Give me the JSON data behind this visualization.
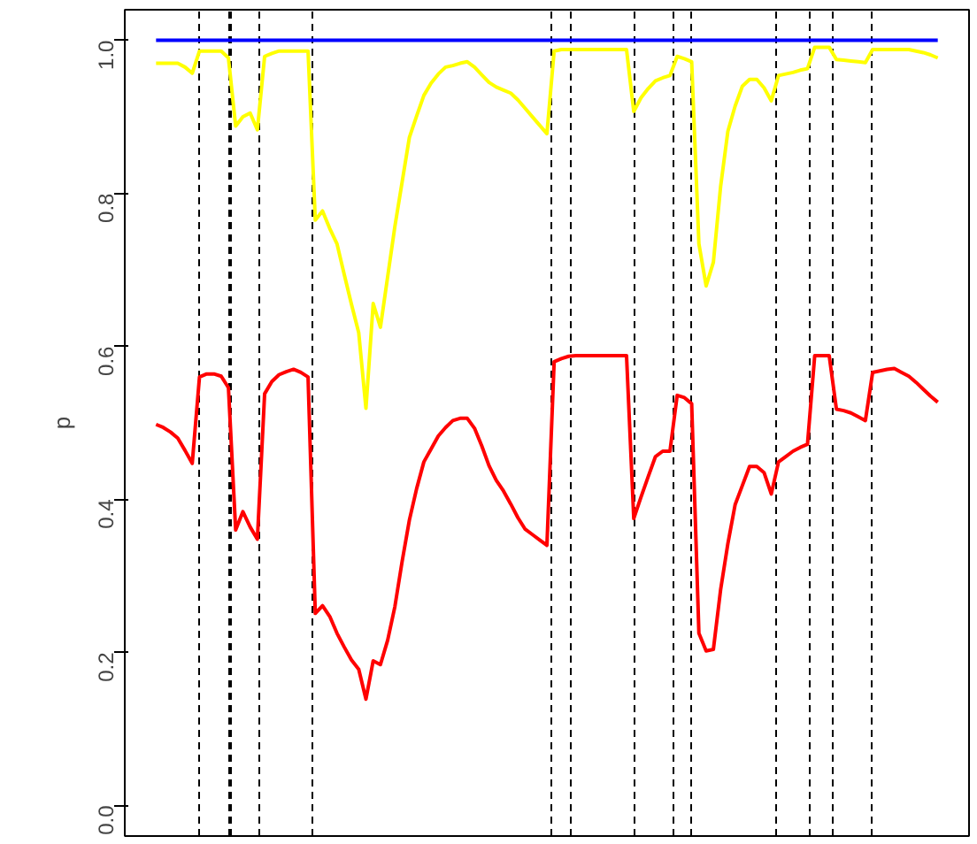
{
  "chart_data": {
    "type": "line",
    "ylabel": "p",
    "ylim": [
      -0.04,
      1.04
    ],
    "yticks": [
      {
        "value": 0,
        "label": "0.0"
      },
      {
        "value": 0.2,
        "label": "0.2"
      },
      {
        "value": 0.4,
        "label": "0.4"
      },
      {
        "value": 0.6,
        "label": "0.6"
      },
      {
        "value": 0.8,
        "label": "0.8"
      },
      {
        "value": 1,
        "label": "1.0"
      }
    ],
    "tick_labels": "y",
    "line_style": "solid",
    "grid": "x",
    "categories": [
      null,
      null,
      null,
      null,
      null,
      null,
      null,
      null,
      null,
      null,
      null,
      null,
      null,
      null,
      null,
      null,
      null,
      null,
      null,
      null,
      null,
      null,
      null,
      null,
      null,
      null,
      null,
      null,
      null,
      null,
      null,
      null,
      null,
      null,
      null,
      null,
      null,
      null,
      null,
      null,
      null,
      null,
      null,
      null,
      null,
      null,
      null,
      null,
      null,
      null,
      null,
      null,
      null,
      null,
      null,
      null,
      null,
      null,
      null,
      null,
      null,
      null,
      null,
      null,
      null,
      null,
      null,
      null,
      null,
      null,
      null,
      null,
      null,
      null,
      null,
      null,
      null,
      null,
      null,
      null,
      null,
      null,
      null,
      null,
      null,
      null,
      null,
      null,
      null,
      null,
      null,
      null,
      null,
      null,
      null,
      null,
      null,
      null,
      null,
      null,
      null,
      null,
      null,
      null,
      null,
      null,
      null,
      null,
      null
    ],
    "series": [
      {
        "color": "#0000ff",
        "values": [
          1,
          1,
          1,
          1,
          1,
          1,
          1,
          1,
          1,
          1,
          1,
          1,
          1,
          1,
          1,
          1,
          1,
          1,
          1,
          1,
          1,
          1,
          1,
          1,
          1,
          1,
          1,
          1,
          1,
          1,
          1,
          1,
          1,
          1,
          1,
          1,
          1,
          1,
          1,
          1,
          1,
          1,
          1,
          1,
          1,
          1,
          1,
          1,
          1,
          1,
          1,
          1,
          1,
          1,
          1,
          1,
          1,
          1,
          1,
          1,
          1,
          1,
          1,
          1,
          1,
          1,
          1,
          1,
          1,
          1,
          1,
          1,
          1,
          1,
          1,
          1,
          1,
          1,
          1,
          1,
          1,
          1,
          1,
          1,
          1,
          1,
          1,
          1,
          1,
          1,
          1,
          1,
          1,
          1,
          1,
          1,
          1,
          1,
          1,
          1,
          1,
          1,
          1,
          1,
          1,
          1,
          1,
          1,
          1
        ]
      },
      {
        "color": "#ffff00",
        "values": [
          0.97,
          0.97,
          0.97,
          0.97,
          0.965,
          0.957,
          0.986,
          0.986,
          0.986,
          0.986,
          0.977,
          0.888,
          0.9,
          0.905,
          0.883,
          0.979,
          0.983,
          0.986,
          0.986,
          0.986,
          0.986,
          0.986,
          0.765,
          0.777,
          0.754,
          0.734,
          0.694,
          0.655,
          0.618,
          0.519,
          0.656,
          0.625,
          0.691,
          0.757,
          0.815,
          0.873,
          0.901,
          0.928,
          0.944,
          0.956,
          0.965,
          0.967,
          0.97,
          0.972,
          0.965,
          0.955,
          0.945,
          0.939,
          0.935,
          0.931,
          0.922,
          0.911,
          0.9,
          0.889,
          0.878,
          0.986,
          0.988,
          0.988,
          0.988,
          0.988,
          0.988,
          0.988,
          0.988,
          0.988,
          0.988,
          0.988,
          0.907,
          0.925,
          0.937,
          0.947,
          0.951,
          0.954,
          0.979,
          0.976,
          0.972,
          0.734,
          0.679,
          0.71,
          0.809,
          0.881,
          0.914,
          0.94,
          0.949,
          0.949,
          0.938,
          0.921,
          0.954,
          0.956,
          0.958,
          0.961,
          0.963,
          0.991,
          0.991,
          0.991,
          0.975,
          0.974,
          0.973,
          0.972,
          0.971,
          0.988,
          0.988,
          0.988,
          0.988,
          0.988,
          0.988,
          0.986,
          0.984,
          0.981,
          0.977
        ]
      },
      {
        "color": "#ff0000",
        "values": [
          0.498,
          0.494,
          0.488,
          0.48,
          0.464,
          0.447,
          0.56,
          0.564,
          0.564,
          0.561,
          0.546,
          0.36,
          0.384,
          0.364,
          0.348,
          0.538,
          0.554,
          0.563,
          0.567,
          0.57,
          0.566,
          0.56,
          0.251,
          0.261,
          0.247,
          0.225,
          0.207,
          0.19,
          0.178,
          0.139,
          0.189,
          0.184,
          0.216,
          0.26,
          0.319,
          0.373,
          0.414,
          0.449,
          0.466,
          0.483,
          0.494,
          0.503,
          0.506,
          0.506,
          0.493,
          0.47,
          0.444,
          0.425,
          0.411,
          0.394,
          0.376,
          0.361,
          0.354,
          0.347,
          0.34,
          0.58,
          0.584,
          0.587,
          0.588,
          0.588,
          0.588,
          0.588,
          0.588,
          0.588,
          0.588,
          0.588,
          0.375,
          0.403,
          0.43,
          0.456,
          0.463,
          0.463,
          0.536,
          0.533,
          0.525,
          0.225,
          0.202,
          0.204,
          0.282,
          0.342,
          0.393,
          0.418,
          0.443,
          0.443,
          0.435,
          0.407,
          0.449,
          0.456,
          0.463,
          0.468,
          0.472,
          0.588,
          0.588,
          0.588,
          0.518,
          0.516,
          0.513,
          0.508,
          0.503,
          0.566,
          0.568,
          0.57,
          0.571,
          0.566,
          0.561,
          0.553,
          0.544,
          0.535,
          0.527
        ]
      }
    ]
  }
}
